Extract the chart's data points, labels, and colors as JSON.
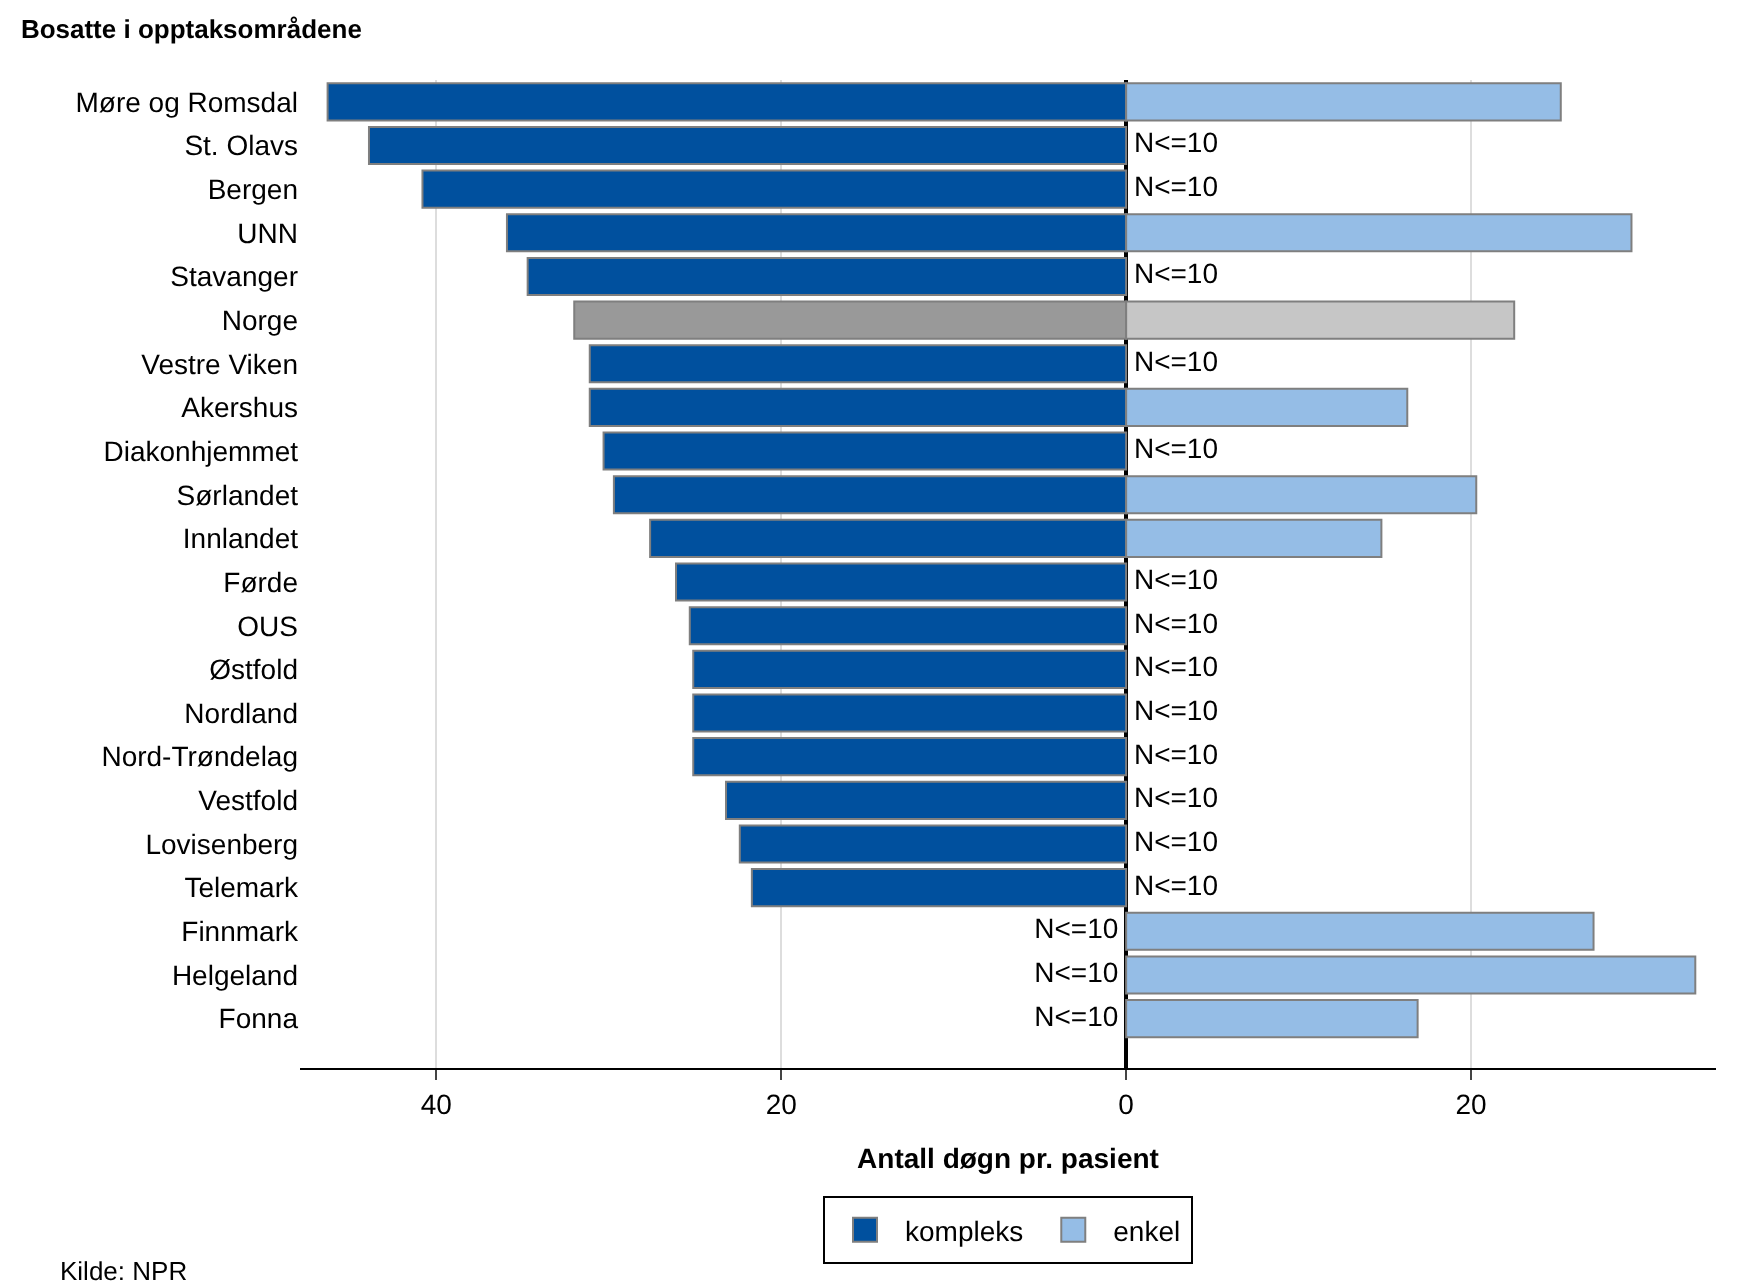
{
  "chart_data": {
    "type": "bar",
    "orientation": "horizontal",
    "stacked": true,
    "title": "Bosatte i opptaksområdene",
    "xlabel": "Antall døgn pr. pasient",
    "categories": [
      "Møre og Romsdal",
      "St. Olavs",
      "Bergen",
      "UNN",
      "Stavanger",
      "Norge",
      "Vestre Viken",
      "Akershus",
      "Diakonhjemmet",
      "Sørlandet",
      "Innlandet",
      "Førde",
      "OUS",
      "Østfold",
      "Nordland",
      "Nord-Trøndelag",
      "Vestfold",
      "Lovisenberg",
      "Telemark",
      "Finnmark",
      "Helgeland",
      "Fonna"
    ],
    "series": [
      {
        "name": "kompleks",
        "color": "#00509e",
        "colors": [
          "#00509e",
          "#00509e",
          "#00509e",
          "#00509e",
          "#00509e",
          "#999999",
          "#00509e",
          "#00509e",
          "#00509e",
          "#00509e",
          "#00509e",
          "#00509e",
          "#00509e",
          "#00509e",
          "#00509e",
          "#00509e",
          "#00509e",
          "#00509e",
          "#00509e",
          "#00509e",
          "#00509e",
          "#00509e"
        ],
        "values": [
          -46.3,
          -43.9,
          -40.8,
          -35.9,
          -34.7,
          -32.0,
          -31.1,
          -31.1,
          -30.3,
          -29.7,
          -27.6,
          -26.1,
          -25.3,
          -25.1,
          -25.1,
          -25.1,
          -23.2,
          -22.4,
          -21.7,
          null,
          null,
          null
        ],
        "value_labels": [
          null,
          null,
          null,
          null,
          null,
          null,
          null,
          null,
          null,
          null,
          null,
          null,
          null,
          null,
          null,
          null,
          null,
          null,
          null,
          "N<=10",
          "N<=10",
          "N<=10"
        ]
      },
      {
        "name": "enkel",
        "color": "#95bde6",
        "colors": [
          "#95bde6",
          "#95bde6",
          "#95bde6",
          "#95bde6",
          "#95bde6",
          "#c6c6c6",
          "#95bde6",
          "#95bde6",
          "#95bde6",
          "#95bde6",
          "#95bde6",
          "#95bde6",
          "#95bde6",
          "#95bde6",
          "#95bde6",
          "#95bde6",
          "#95bde6",
          "#95bde6",
          "#95bde6",
          "#95bde6",
          "#95bde6",
          "#95bde6"
        ],
        "values": [
          25.2,
          null,
          null,
          29.3,
          null,
          22.5,
          null,
          16.3,
          null,
          20.3,
          14.8,
          null,
          null,
          null,
          null,
          null,
          null,
          null,
          null,
          27.1,
          33.0,
          16.9
        ],
        "value_labels": [
          null,
          "N<=10",
          "N<=10",
          null,
          "N<=10",
          null,
          "N<=10",
          null,
          "N<=10",
          null,
          null,
          "N<=10",
          "N<=10",
          "N<=10",
          "N<=10",
          "N<=10",
          "N<=10",
          "N<=10",
          "N<=10",
          null,
          null,
          null
        ]
      }
    ],
    "xlim": [
      -47.9,
      34.2
    ],
    "xticks": [
      {
        "value": -40,
        "label": "40"
      },
      {
        "value": -20,
        "label": "20"
      },
      0,
      20
    ],
    "grid": "x",
    "legend": "bottom",
    "annotations": [
      "Kilde: NPR"
    ]
  }
}
